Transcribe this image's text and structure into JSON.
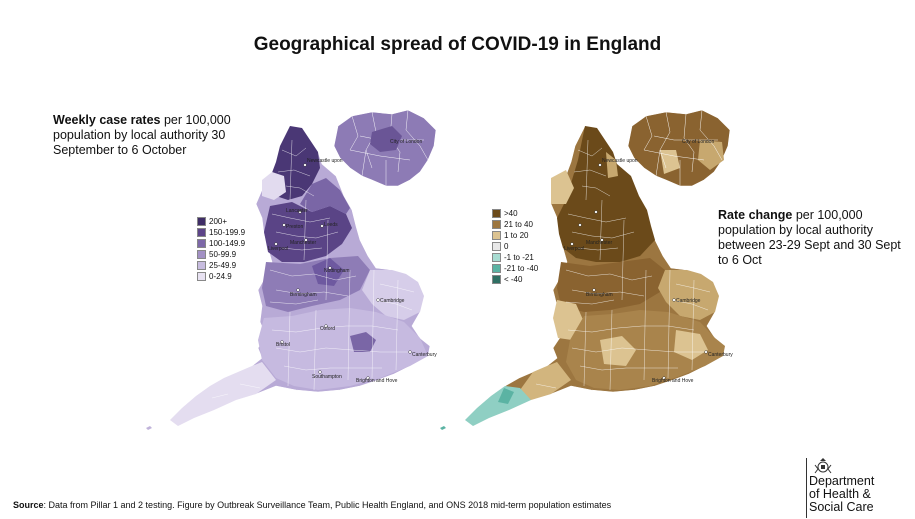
{
  "title": "Geographical spread of COVID-19 in England",
  "left_panel": {
    "desc_bold": "Weekly case rates",
    "desc_rest": " per 100,000 population by local authority 30 September to 6 October",
    "legend": [
      {
        "label": "200+",
        "color": "#3f2d66"
      },
      {
        "label": "150-199.9",
        "color": "#5c4488"
      },
      {
        "label": "100-149.9",
        "color": "#7d68a8"
      },
      {
        "label": "50-99.9",
        "color": "#a290c4"
      },
      {
        "label": "25-49.9",
        "color": "#c7bcdf"
      },
      {
        "label": "0-24.9",
        "color": "#e8e2f2"
      }
    ],
    "map_labels": {
      "city_of_london": "City of London",
      "newcastle": "Newcastle upon",
      "lancaster": "Lancaster",
      "preston": "Preston",
      "leeds": "Leeds",
      "manchester": "Manchester",
      "liverpool": "Liverpool",
      "nottingham": "Nottingham",
      "birmingham": "Birmingham",
      "cambridge": "Cambridge",
      "oxford": "Oxford",
      "bristol": "Bristol",
      "canterbury": "Canterbury",
      "brighton_hove": "Brighton and Hove",
      "southampton": "Southampton"
    }
  },
  "right_panel": {
    "desc_bold": "Rate change",
    "desc_rest": " per 100,000 population by local authority between 23-29 Sept and 30 Sept to 6 Oct",
    "legend": [
      {
        "label": ">40",
        "color": "#6b4a1a"
      },
      {
        "label": "21 to 40",
        "color": "#9c7640"
      },
      {
        "label": "1 to 20",
        "color": "#dcc391"
      },
      {
        "label": "0",
        "color": "#e8e8e8"
      },
      {
        "label": "-1 to -21",
        "color": "#a8dcd2"
      },
      {
        "label": "-21 to -40",
        "color": "#5bb3a3"
      },
      {
        "label": "< -40",
        "color": "#2f6f63"
      }
    ],
    "map_labels": {
      "city_of_london": "City of London",
      "newcastle": "Newcastle upon",
      "manchester": "Manchester",
      "liverpool": "Liverpool",
      "birmingham": "Birmingham",
      "cambridge": "Cambridge",
      "canterbury": "Canterbury",
      "brighton_hove": "Brighton and Hove"
    }
  },
  "source": {
    "bold": "Source",
    "rest": ": Data from Pillar 1 and 2 testing. Figure by Outbreak Surveillance Team, Public Health England, and ONS 2018 mid-term population estimates"
  },
  "department": {
    "line1": "Department",
    "line2": "of Health &",
    "line3": "Social Care"
  }
}
